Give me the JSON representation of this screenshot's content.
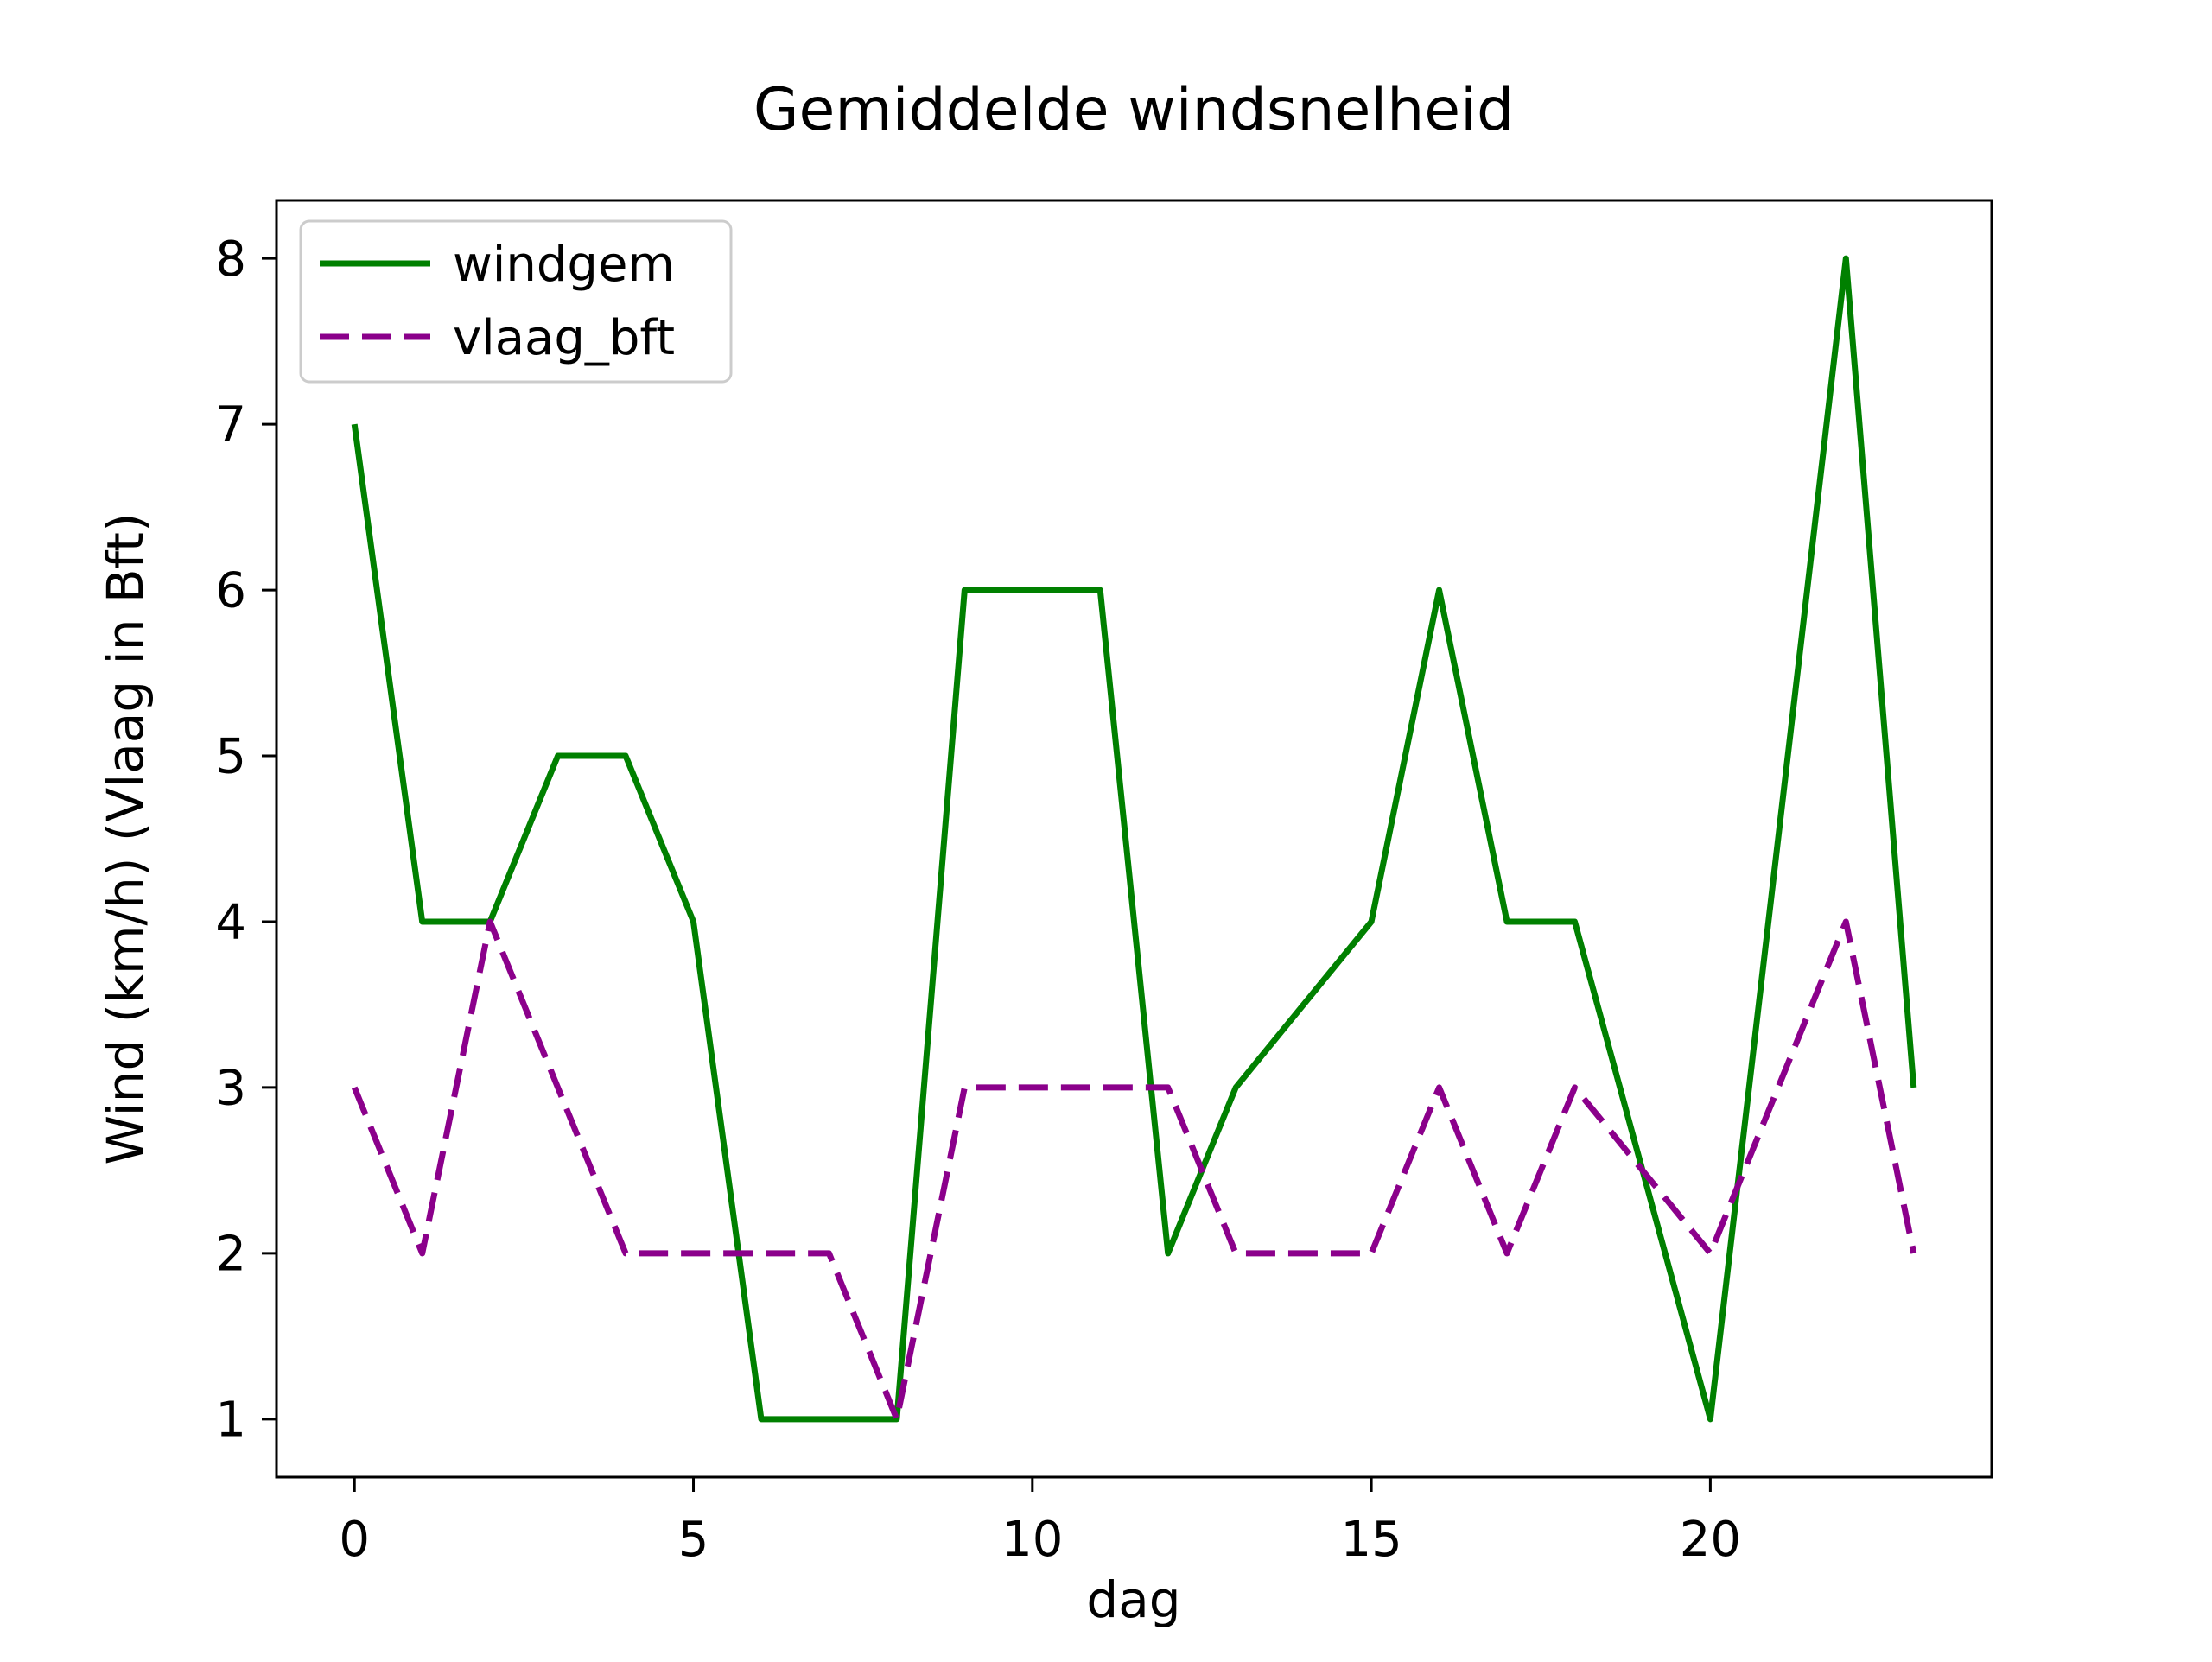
{
  "figure": {
    "title": "Gemiddelde windsnelheid",
    "x_axis_label": "dag",
    "y_axis_label": "Wind (km/h) (Vlaag in Bft)"
  },
  "legend": {
    "position": "upper left",
    "entries": [
      {
        "label": "windgem",
        "color": "#008000",
        "style": "solid"
      },
      {
        "label": "vlaag_bft",
        "color": "#8b008b",
        "style": "dashed"
      }
    ]
  },
  "chart_data": {
    "type": "line",
    "title": "Gemiddelde windsnelheid",
    "xlabel": "dag",
    "ylabel": "Wind (km/h) (Vlaag in Bft)",
    "x": [
      0,
      1,
      2,
      3,
      4,
      5,
      6,
      7,
      8,
      9,
      10,
      11,
      12,
      13,
      14,
      15,
      16,
      17,
      18,
      19,
      20,
      21,
      22,
      23
    ],
    "series": [
      {
        "name": "windgem",
        "color": "#008000",
        "line_style": "solid",
        "values": [
          7,
          4,
          4,
          5,
          5,
          4,
          1,
          1,
          1,
          6,
          6,
          6,
          2,
          3,
          3.5,
          4,
          6,
          4,
          4,
          2.5,
          1,
          4.5,
          8,
          3
        ]
      },
      {
        "name": "vlaag_bft",
        "color": "#8b008b",
        "line_style": "dashed",
        "values": [
          3,
          2,
          4,
          3,
          2,
          2,
          2,
          2,
          1,
          3,
          3,
          3,
          3,
          2,
          2,
          2,
          3,
          2,
          3,
          2.5,
          2,
          3,
          4,
          2
        ]
      }
    ],
    "x_ticks": [
      0,
      5,
      10,
      15,
      20
    ],
    "y_ticks": [
      1,
      2,
      3,
      4,
      5,
      6,
      7,
      8
    ],
    "xlim": [
      -1.15,
      24.15
    ],
    "ylim": [
      0.65,
      8.35
    ],
    "grid": false,
    "legend_position": "upper left"
  }
}
